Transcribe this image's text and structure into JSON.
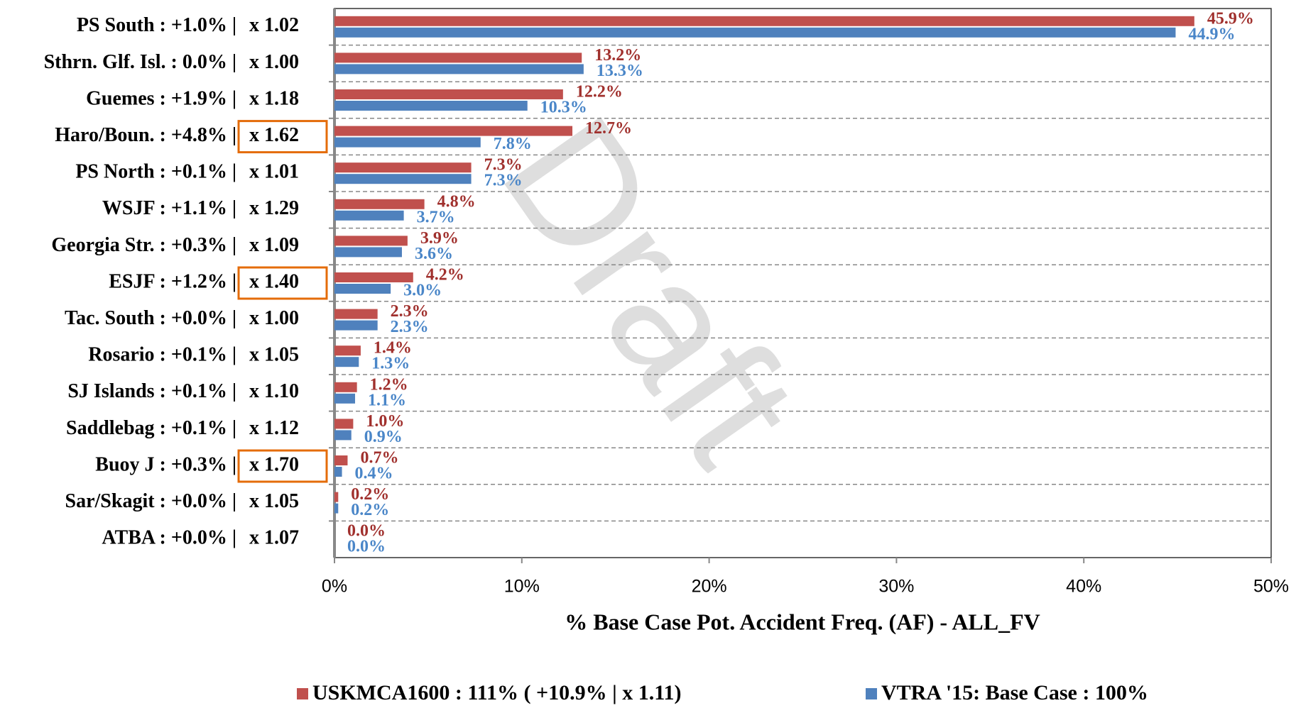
{
  "chart_data": {
    "type": "bar",
    "orientation": "horizontal",
    "categories": [
      "PS South : +1.0% |",
      "Sthrn. Glf. Isl. : 0.0% |",
      "Guemes : +1.9% |",
      "Haro/Boun. : +4.8% |",
      "PS North : +0.1% |",
      "WSJF : +1.1% |",
      "Georgia Str. : +0.3% |",
      "ESJF : +1.2% |",
      "Tac. South : +0.0% |",
      "Rosario : +0.1% |",
      "SJ Islands : +0.1% |",
      "Saddlebag : +0.1% |",
      "Buoy J : +0.3% |",
      "Sar/Skagit : +0.0% |",
      "ATBA : +0.0% |"
    ],
    "factors": [
      "x 1.02",
      "x 1.00",
      "x 1.18",
      "x 1.62",
      "x 1.01",
      "x 1.29",
      "x 1.09",
      "x 1.40",
      "x 1.00",
      "x 1.05",
      "x 1.10",
      "x 1.12",
      "x 1.70",
      "x 1.05",
      "x 1.07"
    ],
    "highlighted": [
      false,
      false,
      false,
      true,
      false,
      false,
      false,
      true,
      false,
      false,
      false,
      false,
      true,
      false,
      false
    ],
    "highlight_color": "#e46c0a",
    "series": [
      {
        "name": "USKMCA1600 : 111% ( +10.9% |  x 1.11)",
        "color": "#c0504d",
        "label_color": "#a0302d",
        "values": [
          45.9,
          13.2,
          12.2,
          12.7,
          7.3,
          4.8,
          3.9,
          4.2,
          2.3,
          1.4,
          1.2,
          1.0,
          0.7,
          0.2,
          0.0
        ],
        "value_labels": [
          "45.9%",
          "13.2%",
          "12.2%",
          "12.7%",
          "7.3%",
          "4.8%",
          "3.9%",
          "4.2%",
          "2.3%",
          "1.4%",
          "1.2%",
          "1.0%",
          "0.7%",
          "0.2%",
          "0.0%"
        ]
      },
      {
        "name": "VTRA '15: Base Case : 100%",
        "color": "#4f81bd",
        "label_color": "#4a86c8",
        "values": [
          44.9,
          13.3,
          10.3,
          7.8,
          7.3,
          3.7,
          3.6,
          3.0,
          2.3,
          1.3,
          1.1,
          0.9,
          0.4,
          0.2,
          0.0
        ],
        "value_labels": [
          "44.9%",
          "13.3%",
          "10.3%",
          "7.8%",
          "7.3%",
          "3.7%",
          "3.6%",
          "3.0%",
          "2.3%",
          "1.3%",
          "1.1%",
          "0.9%",
          "0.4%",
          "0.2%",
          "0.0%"
        ]
      }
    ],
    "xlabel": "% Base Case Pot. Accident Freq. (AF) - ALL_FV",
    "xlim": [
      0,
      50
    ],
    "xticks": [
      {
        "value": 0,
        "label": "0%"
      },
      {
        "value": 10,
        "label": "10%"
      },
      {
        "value": 20,
        "label": "20%"
      },
      {
        "value": 30,
        "label": "30%"
      },
      {
        "value": 40,
        "label": "40%"
      },
      {
        "value": 50,
        "label": "50%"
      }
    ],
    "watermark": "Draft",
    "legend": "bottom"
  }
}
